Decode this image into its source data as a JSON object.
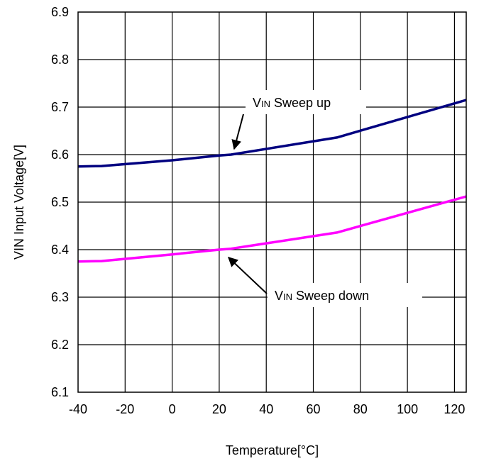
{
  "chart_data": {
    "type": "line",
    "title": "",
    "xlabel": "Temperature[°C]",
    "ylabel": "VIN Input Voltage[V]",
    "xlim": [
      -40,
      125
    ],
    "ylim": [
      6.1,
      6.9
    ],
    "grid": true,
    "x_ticks": [
      -40,
      -20,
      0,
      20,
      40,
      60,
      80,
      100,
      120
    ],
    "y_ticks": [
      6.1,
      6.2,
      6.3,
      6.4,
      6.5,
      6.6,
      6.7,
      6.8,
      6.9
    ],
    "x_tick_labels": [
      "-40",
      "-20",
      "0",
      "20",
      "40",
      "60",
      "80",
      "100",
      "120"
    ],
    "y_tick_labels": [
      "6.1",
      "6.2",
      "6.3",
      "6.4",
      "6.5",
      "6.6",
      "6.7",
      "6.8",
      "6.9"
    ],
    "series": [
      {
        "color": "#000080",
        "x": [
          -40,
          -30,
          0,
          20,
          25,
          70,
          125
        ],
        "y": [
          6.575,
          6.576,
          6.588,
          6.598,
          6.6,
          6.636,
          6.715
        ]
      },
      {
        "color": "#ff00ff",
        "x": [
          -40,
          -30,
          0,
          20,
          25,
          70,
          125
        ],
        "y": [
          6.375,
          6.376,
          6.39,
          6.4,
          6.402,
          6.436,
          6.512
        ]
      }
    ],
    "annotations": [
      {
        "prefix": "V",
        "subscript": "IN",
        "text": " Sweep up",
        "series_index": 0
      },
      {
        "prefix": "V",
        "subscript": "IN",
        "text": " Sweep down",
        "series_index": 1
      }
    ]
  }
}
